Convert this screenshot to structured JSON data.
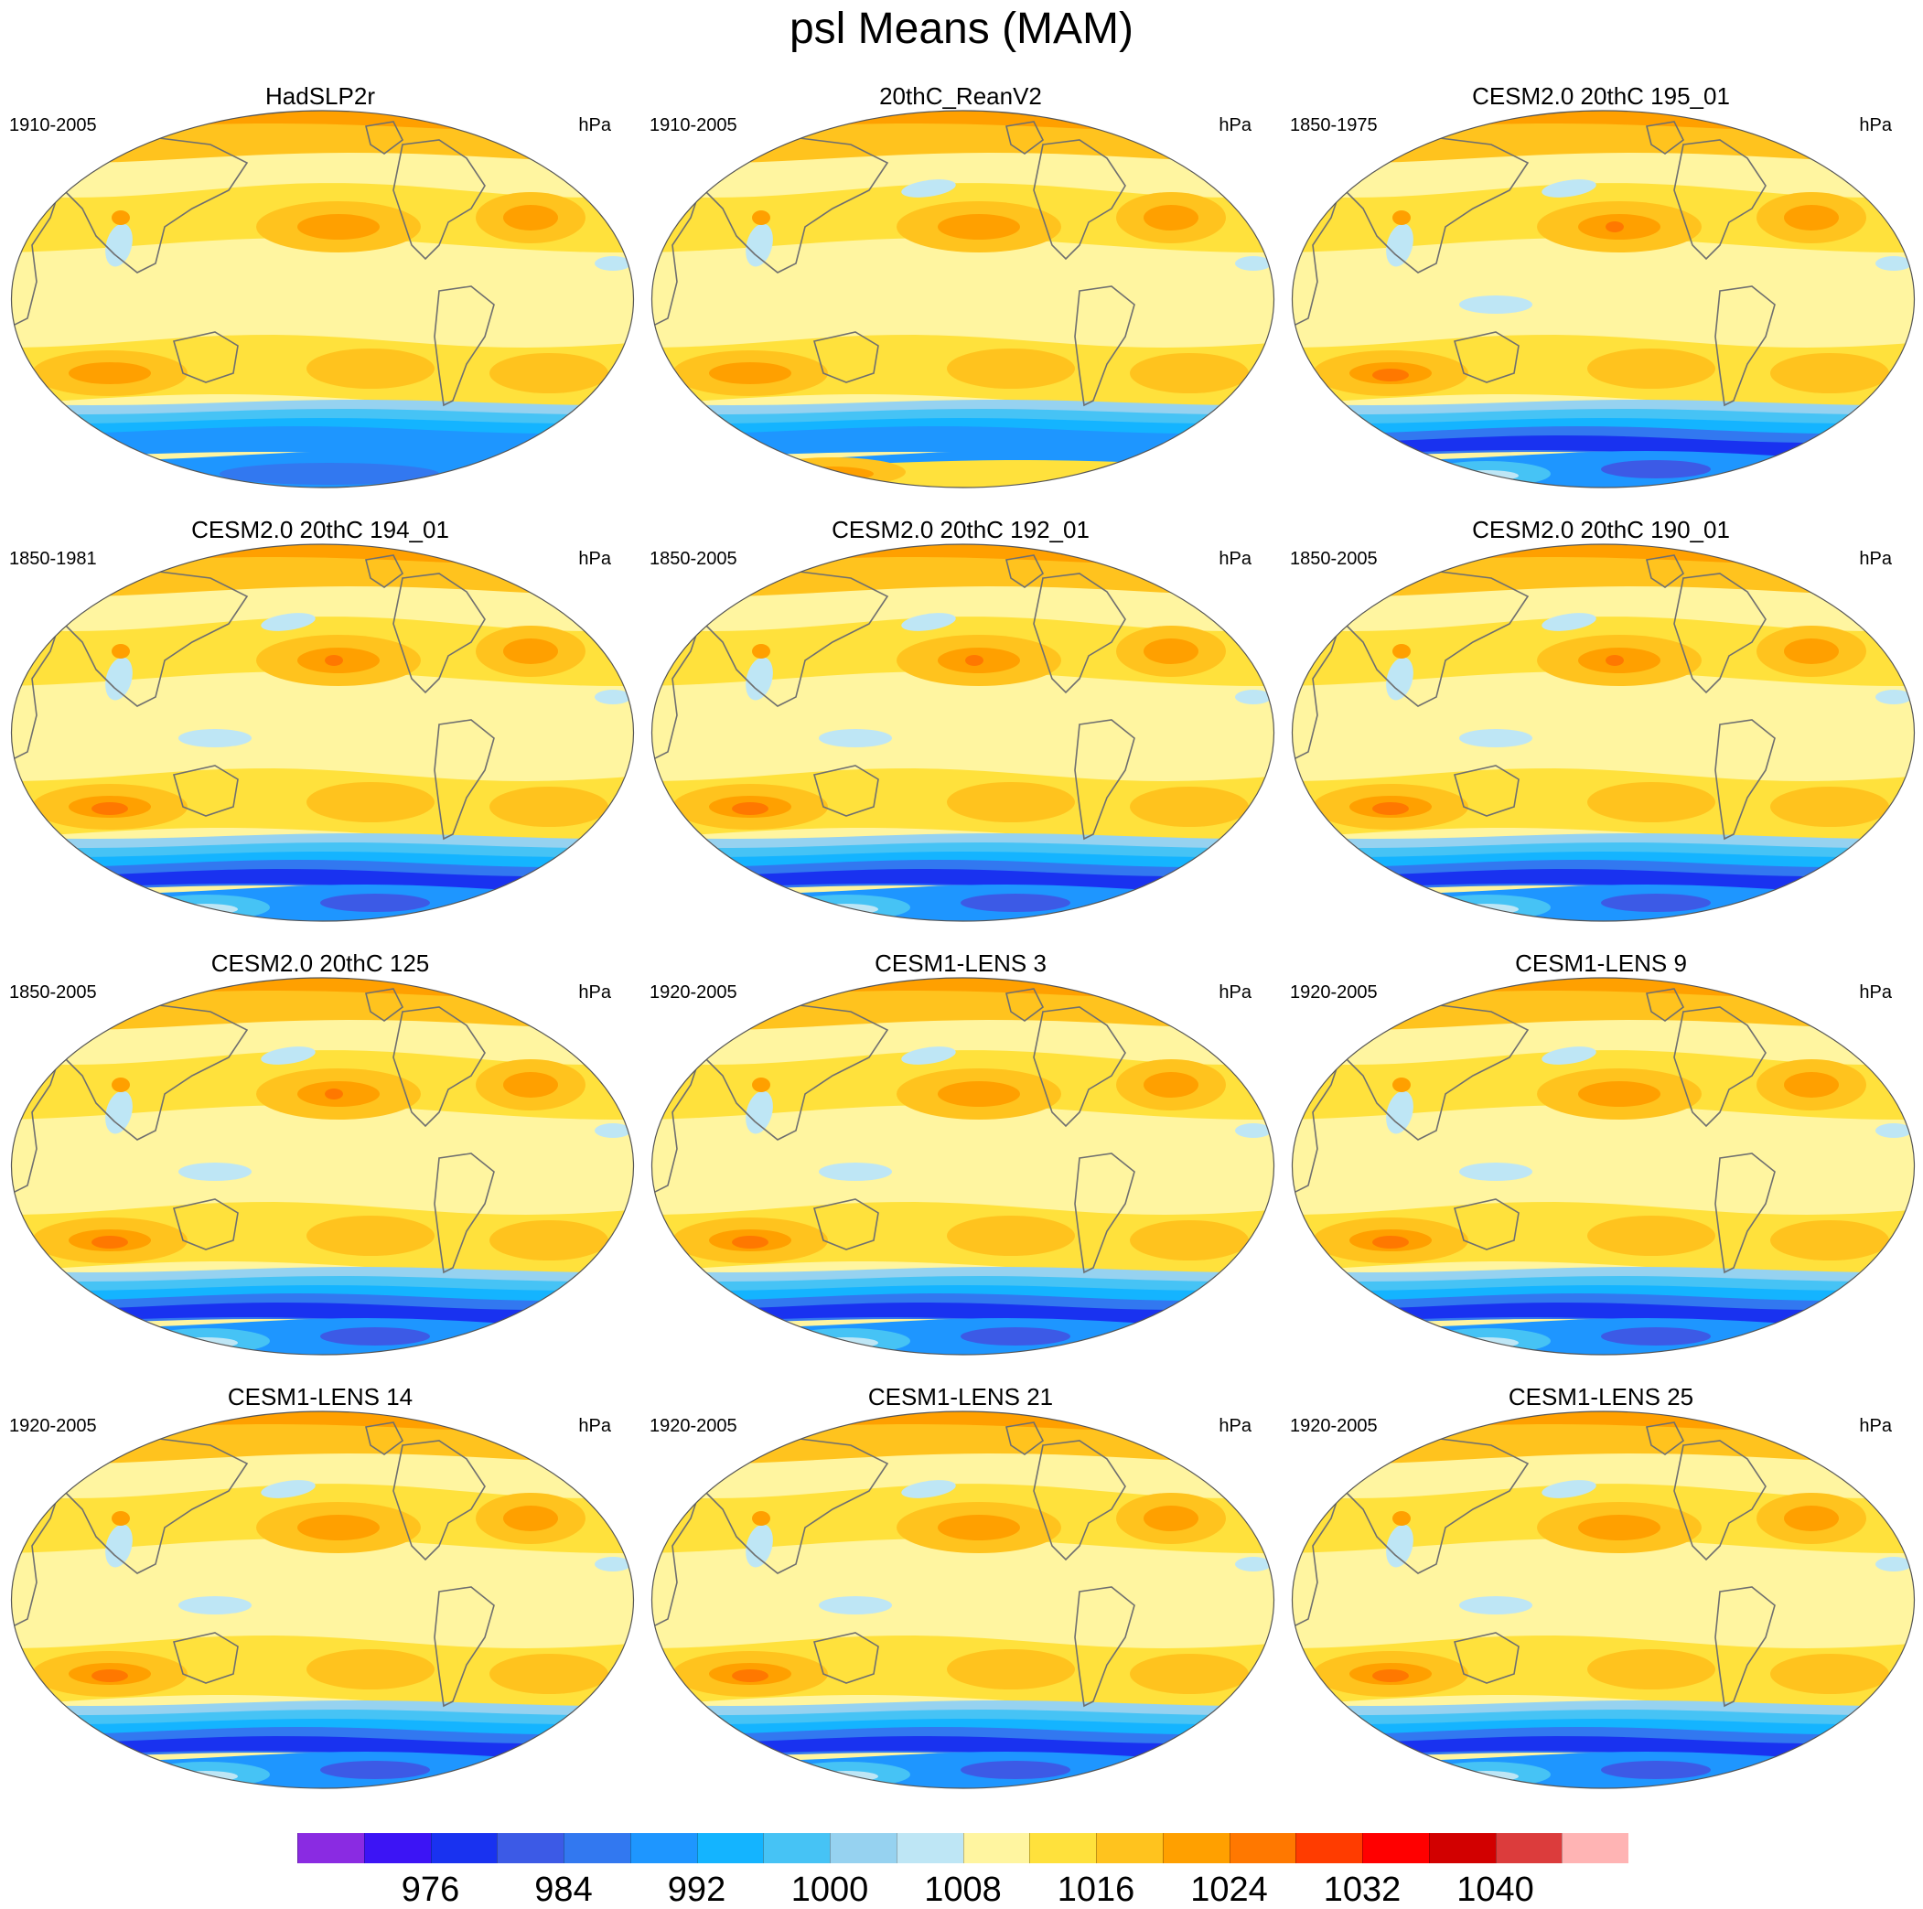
{
  "figure": {
    "title": "psl Means (MAM)"
  },
  "panels": [
    {
      "title": "HadSLP2r",
      "years": "1910-2005",
      "units": "hPa",
      "antarctic": "obs"
    },
    {
      "title": "20thC_ReanV2",
      "years": "1910-2005",
      "units": "hPa",
      "antarctic": "rean"
    },
    {
      "title": "CESM2.0 20thC 195_01",
      "years": "1850-1975",
      "units": "hPa",
      "antarctic": "cesm2"
    },
    {
      "title": "CESM2.0 20thC 194_01",
      "years": "1850-1981",
      "units": "hPa",
      "antarctic": "cesm2"
    },
    {
      "title": "CESM2.0 20thC 192_01",
      "years": "1850-2005",
      "units": "hPa",
      "antarctic": "cesm2"
    },
    {
      "title": "CESM2.0 20thC 190_01",
      "years": "1850-2005",
      "units": "hPa",
      "antarctic": "cesm2"
    },
    {
      "title": "CESM2.0 20thC 125",
      "years": "1850-2005",
      "units": "hPa",
      "antarctic": "cesm2"
    },
    {
      "title": "CESM1-LENS 3",
      "years": "1920-2005",
      "units": "hPa",
      "antarctic": "lens"
    },
    {
      "title": "CESM1-LENS 9",
      "years": "1920-2005",
      "units": "hPa",
      "antarctic": "lens"
    },
    {
      "title": "CESM1-LENS 14",
      "years": "1920-2005",
      "units": "hPa",
      "antarctic": "lens"
    },
    {
      "title": "CESM1-LENS 21",
      "years": "1920-2005",
      "units": "hPa",
      "antarctic": "lens"
    },
    {
      "title": "CESM1-LENS 25",
      "years": "1920-2005",
      "units": "hPa",
      "antarctic": "lens"
    }
  ],
  "colorbar": {
    "units": "hPa",
    "levels": [
      972,
      976,
      980,
      984,
      988,
      992,
      996,
      1000,
      1004,
      1008,
      1012,
      1016,
      1020,
      1024,
      1028,
      1032,
      1036,
      1040,
      1044
    ],
    "labels": [
      "976",
      "984",
      "992",
      "1000",
      "1008",
      "1016",
      "1024",
      "1032",
      "1040"
    ],
    "colors": [
      "#8a2be2",
      "#3c14f5",
      "#1932f0",
      "#3c5ae6",
      "#3278f0",
      "#1e96ff",
      "#14b4ff",
      "#46c3f5",
      "#96d2f0",
      "#bee6f5",
      "#fff5a0",
      "#ffe13c",
      "#ffc31e",
      "#ffa000",
      "#ff7800",
      "#ff3c00",
      "#ff0000",
      "#d20000",
      "#dc3c3c",
      "#ffb4b4"
    ]
  },
  "chart_data": {
    "type": "heatmap",
    "title": "psl Means (MAM)",
    "variable": "psl",
    "season": "MAM",
    "units": "hPa",
    "projection": "Robinson",
    "colorbar_levels": [
      972,
      976,
      980,
      984,
      988,
      992,
      996,
      1000,
      1004,
      1008,
      1012,
      1016,
      1020,
      1024,
      1028,
      1032,
      1036,
      1040,
      1044
    ],
    "colorbar_tick_labels": [
      976,
      984,
      992,
      1000,
      1008,
      1016,
      1024,
      1032,
      1040
    ],
    "series": [
      {
        "name": "HadSLP2r",
        "period": "1910-2005"
      },
      {
        "name": "20thC_ReanV2",
        "period": "1910-2005"
      },
      {
        "name": "CESM2.0 20thC 195_01",
        "period": "1850-1975"
      },
      {
        "name": "CESM2.0 20thC 194_01",
        "period": "1850-1981"
      },
      {
        "name": "CESM2.0 20thC 192_01",
        "period": "1850-2005"
      },
      {
        "name": "CESM2.0 20thC 190_01",
        "period": "1850-2005"
      },
      {
        "name": "CESM2.0 20thC 125",
        "period": "1850-2005"
      },
      {
        "name": "CESM1-LENS 3",
        "period": "1920-2005"
      },
      {
        "name": "CESM1-LENS 9",
        "period": "1920-2005"
      },
      {
        "name": "CESM1-LENS 14",
        "period": "1920-2005"
      },
      {
        "name": "CESM1-LENS 21",
        "period": "1920-2005"
      },
      {
        "name": "CESM1-LENS 25",
        "period": "1920-2005"
      }
    ]
  }
}
